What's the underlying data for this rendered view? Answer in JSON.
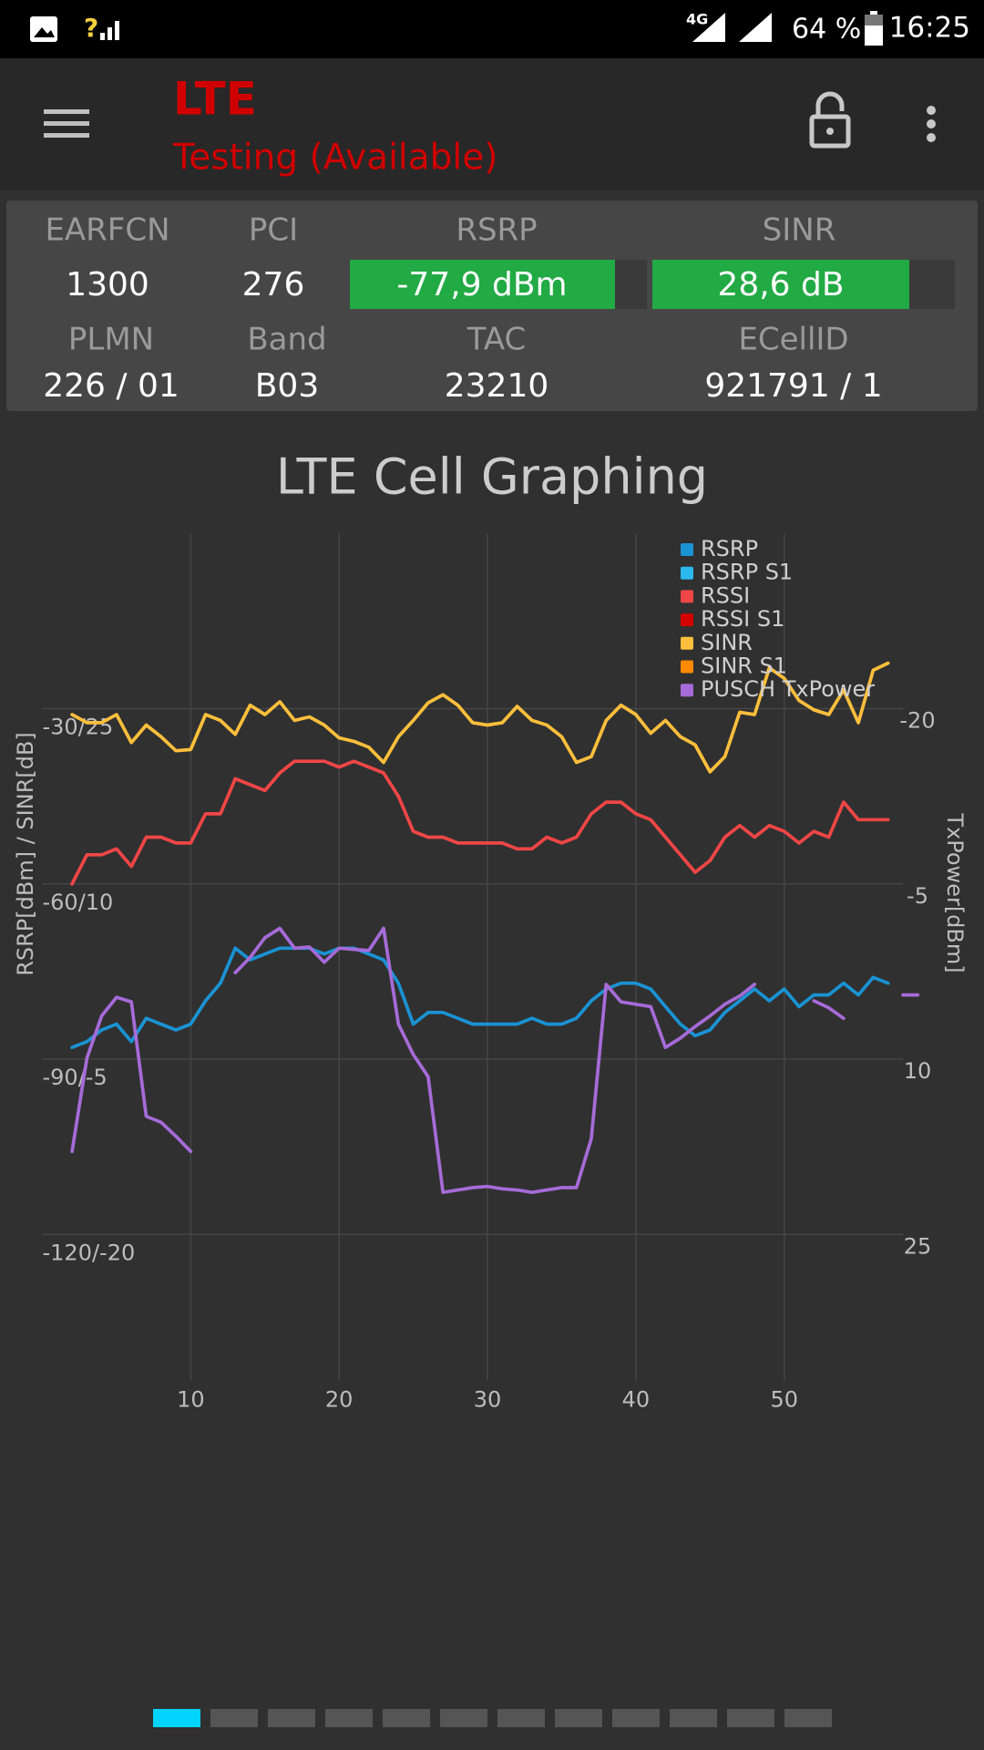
{
  "status_bar": {
    "sim_status": "?",
    "network": "4G",
    "battery": "64 %",
    "time": "16:25"
  },
  "app_bar": {
    "title": "LTE",
    "subtitle": "Testing (Available)"
  },
  "info_panel": {
    "row1": [
      {
        "label": "EARFCN",
        "value": "1300"
      },
      {
        "label": "PCI",
        "value": "276"
      },
      {
        "label": "RSRP",
        "value": "-77,9 dBm"
      },
      {
        "label": "SINR",
        "value": "28,6 dB"
      }
    ],
    "row2": [
      {
        "label": "PLMN",
        "value": "226 / 01"
      },
      {
        "label": "Band",
        "value": "B03"
      },
      {
        "label": "TAC",
        "value": "23210"
      },
      {
        "label": "ECellID",
        "value": "921791 / 1"
      }
    ]
  },
  "chart_data": {
    "type": "line",
    "title": "LTE Cell Graphing",
    "ylabel": "RSRP[dBm] / SINR[dB]",
    "y2label": "TxPower[dBm]",
    "x": [
      2,
      3,
      4,
      5,
      6,
      7,
      8,
      9,
      10,
      11,
      12,
      13,
      14,
      15,
      16,
      17,
      18,
      19,
      20,
      21,
      22,
      23,
      24,
      25,
      26,
      27,
      28,
      29,
      30,
      31,
      32,
      33,
      34,
      35,
      36,
      37,
      38,
      39,
      40,
      41,
      42,
      43,
      44,
      45,
      46,
      47,
      48,
      49,
      50,
      51,
      52,
      53,
      54,
      55,
      56,
      57,
      58,
      59
    ],
    "xlim": [
      0,
      58
    ],
    "xticks": [
      10,
      20,
      30,
      40,
      50
    ],
    "ylim": [
      -145,
      0
    ],
    "yticks": [
      {
        "value": -30,
        "label": "-30/25"
      },
      {
        "value": -60,
        "label": "-60/10"
      },
      {
        "value": -90,
        "label": "-90/-5"
      },
      {
        "value": -120,
        "label": "-120/-20"
      }
    ],
    "y2lim": [
      37.5,
      -35
    ],
    "y2ticks": [
      -20,
      -5,
      10,
      25
    ],
    "y3lim": [
      -32.5,
      40
    ],
    "grid": true,
    "legend": "upper right",
    "series": [
      {
        "name": "RSRP",
        "color": "#1a93d4",
        "axis": "y",
        "values": [
          -88,
          -87,
          -85,
          -84,
          -87,
          -83,
          -84,
          -85,
          -84,
          -80,
          -77,
          -71,
          -73,
          -72,
          -71,
          -71,
          -71,
          -72,
          -71,
          -71,
          -72,
          -73,
          -77,
          -84,
          -82,
          -82,
          -83,
          -84,
          -84,
          -84,
          -84,
          -83,
          -84,
          -84,
          -83,
          -80,
          -78,
          -77,
          -77,
          -78,
          -81,
          -84,
          -86,
          -85,
          -82,
          -80,
          -78,
          -80,
          -78,
          -81,
          -79,
          -79,
          -77,
          -79,
          -76,
          -77,
          null,
          null
        ]
      },
      {
        "name": "RSRP S1",
        "color": "#2bb8ec",
        "axis": "y",
        "values": [
          null,
          null,
          null,
          null,
          null,
          null,
          null,
          null,
          null,
          null,
          null,
          null,
          null,
          null,
          null,
          null,
          null,
          null,
          null,
          null,
          null,
          null,
          null,
          null,
          null,
          null,
          null,
          null,
          null,
          null,
          null,
          null,
          null,
          null,
          null,
          null,
          null,
          null,
          null,
          null,
          null,
          null,
          null,
          null,
          null,
          null,
          null,
          null,
          null,
          null,
          null,
          null,
          null,
          null,
          null,
          null,
          null,
          null
        ]
      },
      {
        "name": "RSSI",
        "color": "#f04646",
        "axis": "y",
        "values": [
          -60,
          -55,
          -55,
          -54,
          -57,
          -52,
          -52,
          -53,
          -53,
          -48,
          -48,
          -42,
          -43,
          -44,
          -41,
          -39,
          -39,
          -39,
          -40,
          -39,
          -40,
          -41,
          -45,
          -51,
          -52,
          -52,
          -53,
          -53,
          -53,
          -53,
          -54,
          -54,
          -52,
          -53,
          -52,
          -48,
          -46,
          -46,
          -48,
          -49,
          -52,
          -55,
          -58,
          -56,
          -52,
          -50,
          -52,
          -50,
          -51,
          -53,
          -51,
          -52,
          -46,
          -49,
          -49,
          -49,
          null,
          null
        ]
      },
      {
        "name": "RSSI S1",
        "color": "#d40000",
        "axis": "y",
        "values": [
          null,
          null,
          null,
          null,
          null,
          null,
          null,
          null,
          null,
          null,
          null,
          null,
          null,
          null,
          null,
          null,
          null,
          null,
          null,
          null,
          null,
          null,
          null,
          null,
          null,
          null,
          null,
          null,
          null,
          null,
          null,
          null,
          null,
          null,
          null,
          null,
          null,
          null,
          null,
          null,
          null,
          null,
          null,
          null,
          null,
          null,
          null,
          null,
          null,
          null,
          null,
          null,
          null,
          null,
          null,
          null,
          null,
          null
        ]
      },
      {
        "name": "SINR",
        "color": "#ffbf3c",
        "axis": "y3",
        "values": [
          24.5,
          23.8,
          23.8,
          24.5,
          22.1,
          23.6,
          22.6,
          21.4,
          21.5,
          24.5,
          24.0,
          22.8,
          25.3,
          24.5,
          25.6,
          24.0,
          24.3,
          23.6,
          22.5,
          22.2,
          21.7,
          20.4,
          22.6,
          24.0,
          25.5,
          26.2,
          25.3,
          23.8,
          23.6,
          23.8,
          25.2,
          24.0,
          23.6,
          22.6,
          20.4,
          20.9,
          24.0,
          25.3,
          24.5,
          22.9,
          24.0,
          22.6,
          21.9,
          19.6,
          20.9,
          24.7,
          24.5,
          28.5,
          27.6,
          25.7,
          24.9,
          24.5,
          26.6,
          23.8,
          28.3,
          28.9,
          null,
          null
        ]
      },
      {
        "name": "SINR S1",
        "color": "#ff8a00",
        "axis": "y3",
        "values": [
          null,
          null,
          null,
          null,
          null,
          null,
          null,
          null,
          null,
          null,
          null,
          null,
          null,
          null,
          null,
          null,
          null,
          null,
          null,
          null,
          null,
          null,
          null,
          null,
          null,
          null,
          null,
          null,
          null,
          null,
          null,
          null,
          null,
          null,
          null,
          null,
          null,
          null,
          null,
          null,
          null,
          null,
          null,
          null,
          null,
          null,
          null,
          null,
          null,
          null,
          null,
          null,
          null,
          null,
          null,
          null,
          null,
          null
        ]
      },
      {
        "name": "PUSCH TxPower",
        "color": "#a66bd8",
        "axis": "y2",
        "values": [
          17.9,
          9.9,
          6.3,
          4.7,
          5.1,
          14.9,
          15.4,
          16.6,
          17.9,
          null,
          null,
          2.6,
          1.3,
          -0.4,
          -1.2,
          0.5,
          0.4,
          1.7,
          0.5,
          0.6,
          0.7,
          -1.2,
          7.0,
          9.6,
          11.5,
          21.4,
          21.2,
          21.0,
          20.9,
          21.1,
          21.2,
          21.4,
          21.2,
          21.0,
          21.0,
          16.8,
          3.6,
          5.1,
          5.3,
          5.5,
          9.0,
          8.2,
          7.2,
          6.3,
          5.3,
          4.6,
          3.6,
          null,
          null,
          null,
          5.0,
          5.6,
          6.5,
          null,
          null,
          null,
          4.5,
          4.5
        ]
      }
    ]
  }
}
